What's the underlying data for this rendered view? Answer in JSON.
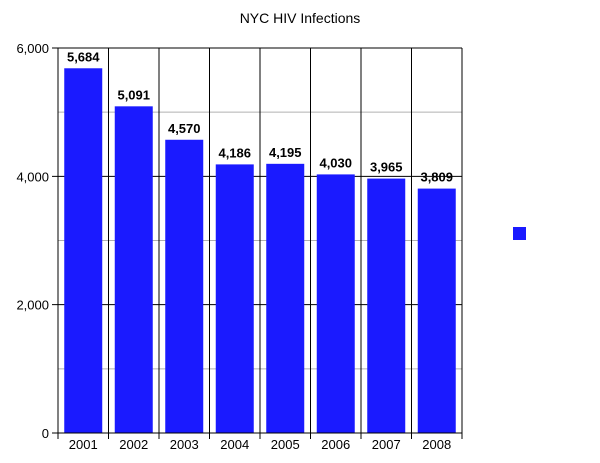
{
  "chart_data": {
    "type": "bar",
    "title": "NYC HIV Infections",
    "xlabel": "",
    "ylabel": "",
    "categories": [
      "2001",
      "2002",
      "2003",
      "2004",
      "2005",
      "2006",
      "2007",
      "2008"
    ],
    "series": [
      {
        "values": [
          5684,
          5091,
          4570,
          4186,
          4195,
          4030,
          3965,
          3809
        ],
        "data_labels": [
          "5,684",
          "5,091",
          "4,570",
          "4,186",
          "4,195",
          "4,030",
          "3,965",
          "3,809"
        ],
        "color": "#1a1aff"
      }
    ],
    "ylim": [
      0,
      6000
    ],
    "yticks": [
      0,
      2000,
      4000,
      6000
    ],
    "ytick_labels": [
      "0",
      "2,000",
      "4,000",
      "6,000"
    ],
    "minor_grid": [
      1000,
      3000,
      5000
    ],
    "grid": true,
    "legend": {
      "position": "right",
      "entries": [
        ""
      ]
    },
    "colors": {
      "bar": "#1a1aff",
      "grid_major": "#000000",
      "grid_minor": "#b0b0b0",
      "axis": "#000000"
    }
  }
}
